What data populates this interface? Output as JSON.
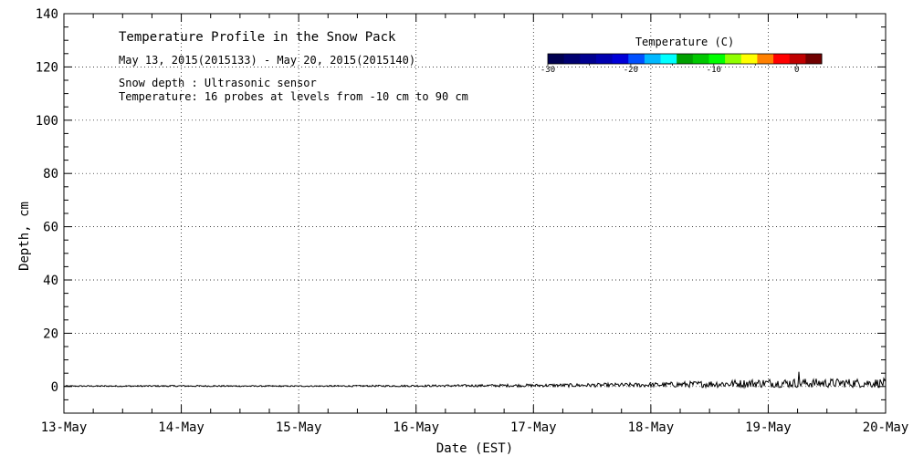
{
  "chart_data": {
    "type": "line",
    "title": "Temperature Profile in the Snow Pack",
    "subtitle": "May 13, 2015(2015133) - May 20, 2015(2015140)",
    "notes": [
      "Snow depth : Ultrasonic sensor",
      "Temperature: 16 probes at levels from -10 cm to 90 cm"
    ],
    "xlabel": "Date (EST)",
    "ylabel": "Depth, cm",
    "xlim": [
      "2015-05-13",
      "2015-05-20"
    ],
    "ylim": [
      -10,
      140
    ],
    "x_ticks": [
      "13-May",
      "14-May",
      "15-May",
      "16-May",
      "17-May",
      "18-May",
      "19-May",
      "20-May"
    ],
    "y_ticks": [
      0,
      20,
      40,
      60,
      80,
      100,
      120,
      140
    ],
    "grid": true,
    "series": [
      {
        "values_note": "snow depth in cm, approximate daily range by date",
        "x": [
          "2015-05-13",
          "2015-05-14",
          "2015-05-15",
          "2015-05-16",
          "2015-05-17",
          "2015-05-18",
          "2015-05-19",
          "2015-05-20"
        ],
        "y": [
          0.3,
          0.4,
          0.3,
          0.5,
          0.8,
          1.2,
          2.5,
          2.5
        ],
        "color": "#000000"
      }
    ],
    "colorbar": {
      "title": "Temperature (C)",
      "ticks": [
        "-30",
        "-20",
        "-10",
        "0"
      ],
      "range": [
        -30,
        3
      ],
      "colors": [
        "#000050",
        "#000070",
        "#000090",
        "#0000b0",
        "#0000d8",
        "#0050ff",
        "#00b8ff",
        "#00ffff",
        "#00a000",
        "#00c800",
        "#00ff00",
        "#90ff00",
        "#ffff00",
        "#ff8000",
        "#ff0000",
        "#c00000",
        "#700000"
      ]
    }
  }
}
